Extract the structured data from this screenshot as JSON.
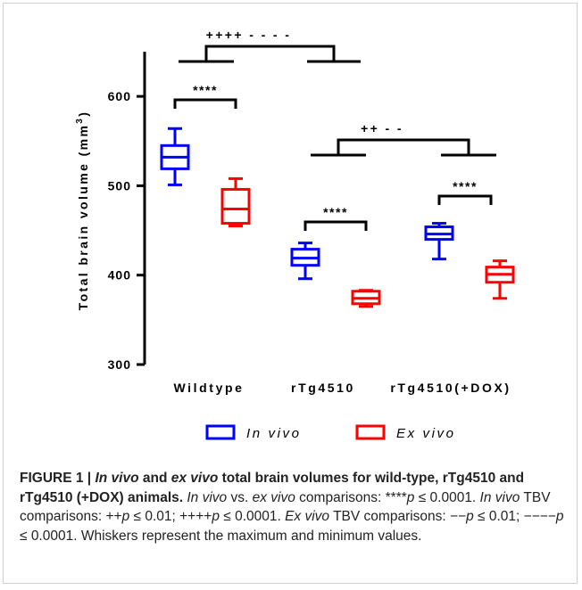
{
  "chart_data": {
    "type": "box",
    "ylabel": "Total brain volume (mm",
    "ylabel_sup": "3",
    "ylabel_close": ")",
    "ylim": [
      300,
      650
    ],
    "yticks": [
      300,
      400,
      500,
      600
    ],
    "groups": [
      "Wildtype",
      "rTg4510",
      "rTg4510(+DOX)"
    ],
    "series": [
      {
        "name": "In vivo",
        "color": "#0000ff",
        "boxes": [
          {
            "group": "Wildtype",
            "min": 501,
            "q1": 519,
            "median": 532,
            "q3": 545,
            "max": 564
          },
          {
            "group": "rTg4510",
            "min": 396,
            "q1": 411,
            "median": 419,
            "q3": 429,
            "max": 436
          },
          {
            "group": "rTg4510(+DOX)",
            "min": 418,
            "q1": 440,
            "median": 446,
            "q3": 454,
            "max": 458
          }
        ]
      },
      {
        "name": "Ex vivo",
        "color": "#ff0000",
        "boxes": [
          {
            "group": "Wildtype",
            "min": 455,
            "q1": 458,
            "median": 474,
            "q3": 496,
            "max": 508
          },
          {
            "group": "rTg4510",
            "min": 365,
            "q1": 368,
            "median": 374,
            "q3": 382,
            "max": 383
          },
          {
            "group": "rTg4510(+DOX)",
            "min": 374,
            "q1": 392,
            "median": 401,
            "q3": 409,
            "max": 416
          }
        ]
      }
    ],
    "significance": [
      {
        "label": "****",
        "between": [
          "Wildtype In vivo",
          "Wildtype Ex vivo"
        ]
      },
      {
        "label": "****",
        "between": [
          "rTg4510 In vivo",
          "rTg4510 Ex vivo"
        ]
      },
      {
        "label": "****",
        "between": [
          "rTg4510(+DOX) In vivo",
          "rTg4510(+DOX) Ex vivo"
        ]
      },
      {
        "label": "++++ - - - -",
        "between": [
          "Wildtype",
          "rTg4510"
        ]
      },
      {
        "label": "++ - -",
        "between": [
          "rTg4510",
          "rTg4510(+DOX)"
        ]
      }
    ],
    "legend": {
      "placement": "bottom"
    }
  },
  "caption": {
    "title": "FIGURE 1 | ",
    "title_in_vivo": "In vivo",
    "title_and": " and ",
    "title_ex_vivo": "ex vivo",
    "title_rest": " total brain volumes for wild-type, rTg4510 and rTg4510 (+DOX) animals.",
    "s1_in_vivo": "In vivo",
    "s1_vs": " vs. ",
    "s1_ex_vivo": "ex vivo",
    "s1_rest": " comparisons: ****",
    "s1_p": "p",
    "s1_end": " ≤ 0.0001. ",
    "s2_in_vivo": "In vivo",
    "s2_a": " TBV comparisons: ++",
    "s2_p1": "p",
    "s2_b": " ≤ 0.01; ++++",
    "s2_p2": "p",
    "s2_c": " ≤ 0.0001. ",
    "s3_ex_vivo": "Ex vivo",
    "s3_a": " TBV comparisons: −−",
    "s3_p1": "p",
    "s3_b": " ≤ 0.01; −−−−",
    "s3_p2": "p",
    "s3_c": " ≤ 0.0001. Whiskers represent the maximum and minimum values."
  }
}
